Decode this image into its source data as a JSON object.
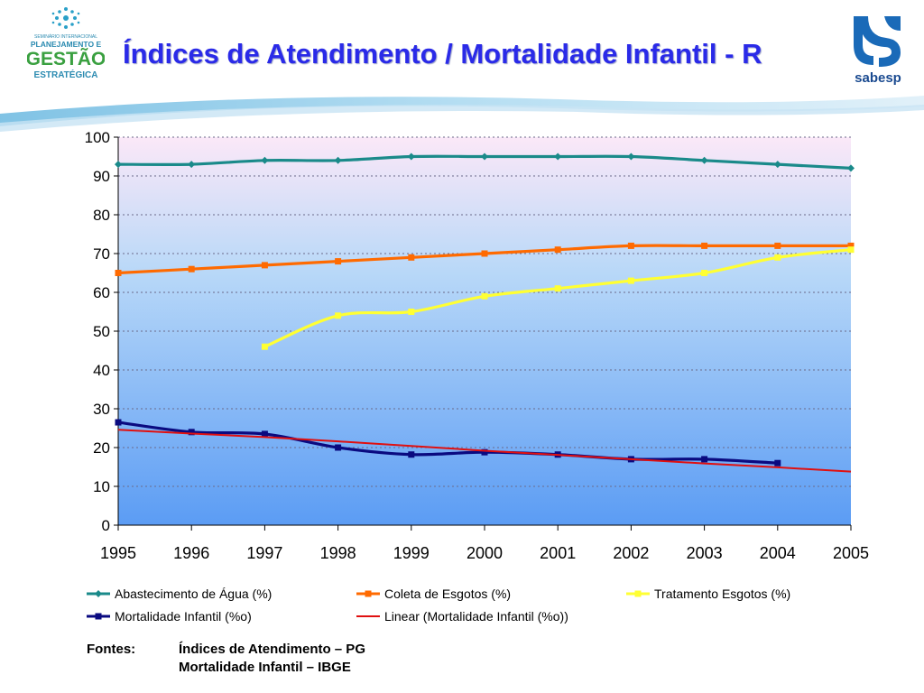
{
  "header": {
    "title": "Índices de Atendimento / Mortalidade Infantil - R",
    "logo_left": {
      "line1": "SEMINÁRIO INTERNACIONAL",
      "line2": "PLANEJAMENTO E",
      "line3": "GESTÃO",
      "line4": "ESTRATÉGICA"
    },
    "logo_right": {
      "text": "sabesp"
    }
  },
  "colors": {
    "title": "#2a2ae8",
    "agua": "#1a8a8a",
    "coleta": "#ff6a00",
    "tratamento": "#ffff33",
    "mortalidade": "#0a0a80",
    "linear": "#e01010"
  },
  "chart_data": {
    "type": "line",
    "x": [
      "1995",
      "1996",
      "1997",
      "1998",
      "1999",
      "2000",
      "2001",
      "2002",
      "2003",
      "2004",
      "2005"
    ],
    "ylim": [
      0,
      100
    ],
    "yticks": [
      "0",
      "10",
      "20",
      "30",
      "40",
      "50",
      "60",
      "70",
      "80",
      "90",
      "100"
    ],
    "grid": true,
    "legend_position": "bottom",
    "series": [
      {
        "name": "Abastecimento de Água (%)",
        "color": "#1a8a8a",
        "marker": "diamond",
        "values": [
          93,
          93,
          94,
          94,
          95,
          95,
          95,
          95,
          94,
          93,
          92
        ]
      },
      {
        "name": "Coleta de Esgotos (%)",
        "color": "#ff6a00",
        "marker": "square",
        "values": [
          65,
          66,
          67,
          68,
          69,
          70,
          71,
          72,
          72,
          72,
          72
        ]
      },
      {
        "name": "Tratamento Esgotos (%)",
        "color": "#ffff33",
        "marker": "square",
        "values": [
          null,
          null,
          46,
          54,
          55,
          59,
          61,
          63,
          65,
          69,
          71
        ]
      },
      {
        "name": "Mortalidade Infantil (%o)",
        "color": "#0a0a80",
        "marker": "square",
        "values": [
          26.5,
          24,
          23.5,
          20,
          18.2,
          18.8,
          18.2,
          17,
          17,
          16,
          null
        ]
      },
      {
        "name": "Linear (Mortalidade Infantil (%o))",
        "color": "#e01010",
        "marker": "none",
        "values": [
          24.6,
          23.6,
          22.7,
          21.6,
          20.4,
          19.2,
          18.1,
          17,
          15.9,
          14.9,
          13.8
        ]
      }
    ]
  },
  "sources": {
    "label": "Fontes:",
    "items": [
      "Índices de Atendimento – PG",
      "Mortalidade Infantil – IBGE"
    ]
  }
}
